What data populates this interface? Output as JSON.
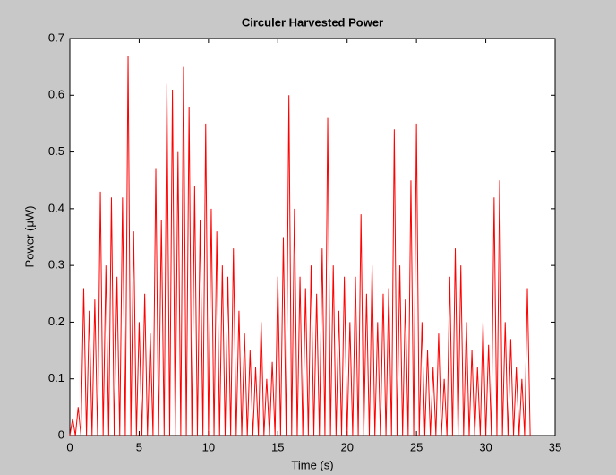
{
  "chart_data": {
    "type": "line",
    "title": "Circuler Harvested Power",
    "x_label": "Time (s)",
    "y_label": "Power (μW)",
    "x": [
      0,
      0.2,
      0.4,
      0.6,
      0.8,
      1,
      1.2,
      1.4,
      1.6,
      1.8,
      2,
      2.2,
      2.4,
      2.6,
      2.8,
      3,
      3.2,
      3.4,
      3.6,
      3.8,
      4,
      4.2,
      4.4,
      4.6,
      4.8,
      5,
      5.2,
      5.4,
      5.6,
      5.8,
      6,
      6.2,
      6.4,
      6.6,
      6.8,
      7,
      7.2,
      7.4,
      7.6,
      7.8,
      8,
      8.2,
      8.4,
      8.6,
      8.8,
      9,
      9.2,
      9.4,
      9.6,
      9.8,
      10,
      10.2,
      10.4,
      10.6,
      10.8,
      11,
      11.2,
      11.4,
      11.6,
      11.8,
      12,
      12.2,
      12.4,
      12.6,
      12.8,
      13,
      13.2,
      13.4,
      13.6,
      13.8,
      14,
      14.2,
      14.4,
      14.6,
      14.8,
      15,
      15.2,
      15.4,
      15.6,
      15.8,
      16,
      16.2,
      16.4,
      16.6,
      16.8,
      17,
      17.2,
      17.4,
      17.6,
      17.8,
      18,
      18.2,
      18.4,
      18.6,
      18.8,
      19,
      19.2,
      19.4,
      19.6,
      19.8,
      20,
      20.2,
      20.4,
      20.6,
      20.8,
      21,
      21.2,
      21.4,
      21.6,
      21.8,
      22,
      22.2,
      22.4,
      22.6,
      22.8,
      23,
      23.2,
      23.4,
      23.6,
      23.8,
      24,
      24.2,
      24.4,
      24.6,
      24.8,
      25,
      25.2,
      25.4,
      25.6,
      25.8,
      26,
      26.2,
      26.4,
      26.6,
      26.8,
      27,
      27.2,
      27.4,
      27.6,
      27.8,
      28,
      28.2,
      28.4,
      28.6,
      28.8,
      29,
      29.2,
      29.4,
      29.6,
      29.8,
      30,
      30.2,
      30.4,
      30.6,
      30.8,
      31,
      31.2,
      31.4,
      31.6,
      31.8,
      32,
      32.2,
      32.4,
      32.6,
      32.8,
      33,
      33.2
    ],
    "series": [
      {
        "name": "Power",
        "color": "#ff0000",
        "values": [
          0,
          0.03,
          0,
          0.05,
          0,
          0.26,
          0,
          0.22,
          0,
          0.24,
          0,
          0.43,
          0,
          0.3,
          0,
          0.42,
          0,
          0.28,
          0,
          0.42,
          0,
          0.67,
          0,
          0.36,
          0,
          0.2,
          0,
          0.25,
          0,
          0.18,
          0,
          0.47,
          0,
          0.38,
          0,
          0.62,
          0,
          0.61,
          0,
          0.5,
          0,
          0.65,
          0,
          0.58,
          0,
          0.44,
          0,
          0.38,
          0,
          0.55,
          0,
          0.4,
          0,
          0.36,
          0,
          0.3,
          0,
          0.28,
          0,
          0.33,
          0,
          0.22,
          0,
          0.18,
          0,
          0.15,
          0,
          0.12,
          0,
          0.2,
          0,
          0.1,
          0,
          0.13,
          0,
          0.28,
          0,
          0.35,
          0,
          0.6,
          0,
          0.4,
          0,
          0.28,
          0,
          0.26,
          0,
          0.3,
          0,
          0.25,
          0,
          0.33,
          0,
          0.56,
          0,
          0.3,
          0,
          0.22,
          0,
          0.28,
          0,
          0.2,
          0,
          0.28,
          0,
          0.39,
          0,
          0.25,
          0,
          0.3,
          0,
          0.2,
          0,
          0.25,
          0,
          0.26,
          0,
          0.54,
          0,
          0.3,
          0,
          0.24,
          0,
          0.45,
          0,
          0.55,
          0,
          0.2,
          0,
          0.15,
          0,
          0.12,
          0,
          0.18,
          0,
          0.1,
          0,
          0.28,
          0,
          0.33,
          0,
          0.3,
          0,
          0.2,
          0,
          0.15,
          0,
          0.12,
          0,
          0.2,
          0,
          0.16,
          0,
          0.42,
          0,
          0.45,
          0,
          0.2,
          0,
          0.17,
          0,
          0.12,
          0,
          0.1,
          0,
          0.26,
          0
        ]
      }
    ],
    "xlim": [
      0,
      35
    ],
    "xticks": [
      0,
      5,
      10,
      15,
      20,
      25,
      30,
      35
    ],
    "ylim": [
      0,
      0.7
    ],
    "yticks": [
      0,
      0.1,
      0.2,
      0.3,
      0.4,
      0.5,
      0.6,
      0.7
    ]
  }
}
